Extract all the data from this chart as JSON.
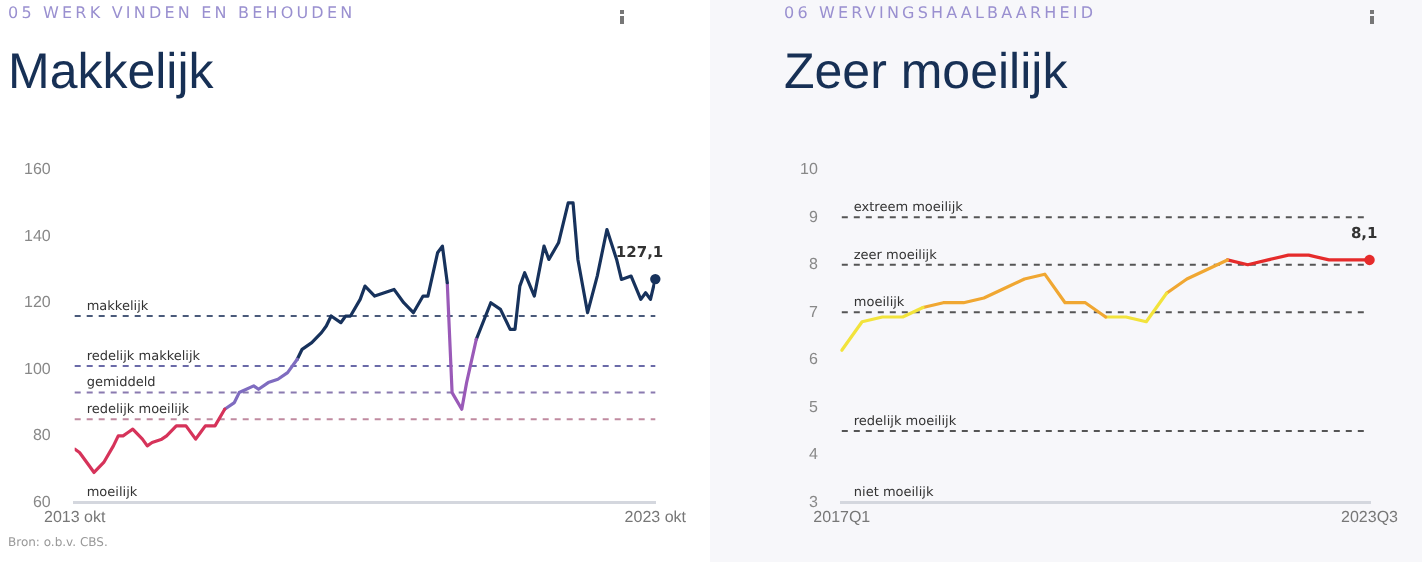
{
  "chart_data": [
    {
      "type": "line",
      "subtitle": "05 WERK VINDEN EN BEHOUDEN",
      "title": "Makkelijk",
      "series": [
        {
          "color": "#d6335a",
          "x": [
            "2013-10",
            "2013-11",
            "2014-01",
            "2014-02",
            "2014-04",
            "2014-06",
            "2014-07",
            "2014-08",
            "2014-09",
            "2014-10",
            "2014-12",
            "2015-01",
            "2015-02",
            "2015-04",
            "2015-05",
            "2015-07",
            "2015-09",
            "2015-11",
            "2015-12",
            "2016-01",
            "2016-03",
            "2016-05"
          ],
          "values": [
            76,
            75,
            71,
            69,
            72,
            77,
            80,
            80,
            81,
            82,
            79,
            77,
            78,
            79,
            80,
            83,
            83,
            79,
            81,
            83,
            83,
            88
          ]
        },
        {
          "color": "#7f6cc0",
          "x": [
            "2016-05",
            "2016-07",
            "2016-08",
            "2016-11",
            "2016-12",
            "2017-02",
            "2017-04",
            "2017-06",
            "2017-08"
          ],
          "values": [
            88,
            90,
            93,
            95,
            94,
            96,
            97,
            99,
            103
          ]
        },
        {
          "color": "#17325c",
          "x": [
            "2017-08",
            "2017-09",
            "2017-11",
            "2018-01",
            "2018-02",
            "2018-03",
            "2018-05",
            "2018-06",
            "2018-07",
            "2018-09",
            "2018-10",
            "2018-12",
            "2019-04",
            "2019-06",
            "2019-08",
            "2019-10",
            "2019-11",
            "2020-01",
            "2020-02",
            "2020-03"
          ],
          "values": [
            103,
            106,
            108,
            111,
            113,
            116,
            114,
            116,
            116,
            121,
            125,
            122,
            124,
            120,
            117,
            122,
            122,
            135,
            137,
            126
          ]
        },
        {
          "color": "#9a5ab8",
          "x": [
            "2020-03",
            "2020-04",
            "2020-06",
            "2020-07",
            "2020-09"
          ],
          "values": [
            126,
            93,
            88,
            96,
            109
          ]
        },
        {
          "color": "#17325c",
          "x": [
            "2020-09",
            "2020-12",
            "2021-02",
            "2021-04",
            "2021-05",
            "2021-06",
            "2021-07",
            "2021-09",
            "2021-11",
            "2021-12",
            "2022-02",
            "2022-04",
            "2022-05",
            "2022-06",
            "2022-08",
            "2022-10",
            "2022-12",
            "2023-02",
            "2023-03",
            "2023-05",
            "2023-07",
            "2023-08",
            "2023-09",
            "2023-10"
          ],
          "values": [
            109,
            120,
            118,
            112,
            112,
            125,
            129,
            122,
            137,
            133,
            138,
            150,
            150,
            133,
            117,
            128,
            142,
            133,
            127,
            128,
            121,
            123,
            121,
            127.1
          ]
        }
      ],
      "xlim": [
        "2013-10",
        "2023-10"
      ],
      "xticks": [
        {
          "value": "2013-10",
          "label": "2013 okt"
        },
        {
          "value": "2023-10",
          "label": "2023 okt"
        }
      ],
      "ylim": [
        60,
        160
      ],
      "yticks": [
        60,
        80,
        100,
        120,
        140,
        160
      ],
      "grid": false,
      "legend": false,
      "ref_lines": [
        {
          "axis": "y",
          "value": 116,
          "label": "makkelijk",
          "color": "#4a5a7a",
          "line_style": "dashed"
        },
        {
          "axis": "y",
          "value": 101,
          "label": "redelijk makkelijk",
          "color": "#6a6aa8",
          "line_style": "dashed"
        },
        {
          "axis": "y",
          "value": 93,
          "label": "gemiddeld",
          "color": "#8a7ab0",
          "line_style": "dashed"
        },
        {
          "axis": "y",
          "value": 85,
          "label": "redelijk moeilijk",
          "color": "#c08aa0",
          "line_style": "dashed"
        }
      ],
      "annotations": [
        {
          "text": "127,1",
          "x": "2023-10",
          "y": 127.1
        },
        "moeilijk",
        "Bron: o.b.v. CBS."
      ]
    },
    {
      "type": "line",
      "subtitle": "06 WERVINGSHAALBAARHEID",
      "title": "Zeer moeilijk",
      "categories": [
        "2017Q1",
        null,
        null,
        null,
        null,
        null,
        null,
        null,
        null,
        null,
        null,
        null,
        null,
        null,
        null,
        null,
        null,
        null,
        null,
        null,
        null,
        null,
        null,
        null,
        null,
        null,
        "2023Q3"
      ],
      "series": [
        {
          "color": "#f2e33c",
          "values": [
            6.2,
            6.8,
            6.9,
            6.9,
            7.1,
            null,
            null,
            null,
            null,
            null,
            null,
            null,
            null,
            null,
            null,
            null,
            null,
            null,
            null,
            null,
            null,
            null,
            null,
            null,
            null,
            null,
            null
          ]
        },
        {
          "color": "#f0a732",
          "values": [
            null,
            null,
            null,
            null,
            7.1,
            7.2,
            7.2,
            7.3,
            7.5,
            7.7,
            7.8,
            7.2,
            7.2,
            6.9,
            null,
            null,
            null,
            null,
            null,
            null,
            null,
            null,
            null,
            null,
            null,
            null,
            null
          ]
        },
        {
          "color": "#f2e33c",
          "values": [
            null,
            null,
            null,
            null,
            null,
            null,
            null,
            null,
            null,
            null,
            null,
            null,
            null,
            6.9,
            6.9,
            6.8,
            7.4,
            null,
            null,
            null,
            null,
            null,
            null,
            null,
            null,
            null,
            null
          ]
        },
        {
          "color": "#f0a732",
          "values": [
            null,
            null,
            null,
            null,
            null,
            null,
            null,
            null,
            null,
            null,
            null,
            null,
            null,
            null,
            null,
            null,
            7.4,
            7.7,
            7.9,
            8.1,
            null,
            null,
            null,
            null,
            null,
            null,
            null
          ]
        },
        {
          "color": "#e52b2b",
          "values": [
            null,
            null,
            null,
            null,
            null,
            null,
            null,
            null,
            null,
            null,
            null,
            null,
            null,
            null,
            null,
            null,
            null,
            null,
            null,
            8.1,
            8.0,
            8.1,
            8.2,
            8.2,
            8.1,
            8.1,
            8.1
          ]
        }
      ],
      "ylim": [
        3,
        10
      ],
      "yticks": [
        3,
        4,
        5,
        6,
        7,
        8,
        9,
        10
      ],
      "grid": false,
      "legend": false,
      "ref_lines": [
        {
          "axis": "y",
          "value": 9,
          "label": "extreem moeilijk",
          "color": "#555555",
          "line_style": "dashed"
        },
        {
          "axis": "y",
          "value": 8,
          "label": "zeer moeilijk",
          "color": "#555555",
          "line_style": "dashed"
        },
        {
          "axis": "y",
          "value": 7,
          "label": "moeilijk",
          "color": "#555555",
          "line_style": "dashed"
        },
        {
          "axis": "y",
          "value": 4.5,
          "label": "redelijk moeilijk",
          "color": "#555555",
          "line_style": "dashed"
        }
      ],
      "annotations": [
        {
          "text": "8,1",
          "x": "2023Q3",
          "y": 8.1
        },
        "niet moeilijk"
      ]
    }
  ]
}
